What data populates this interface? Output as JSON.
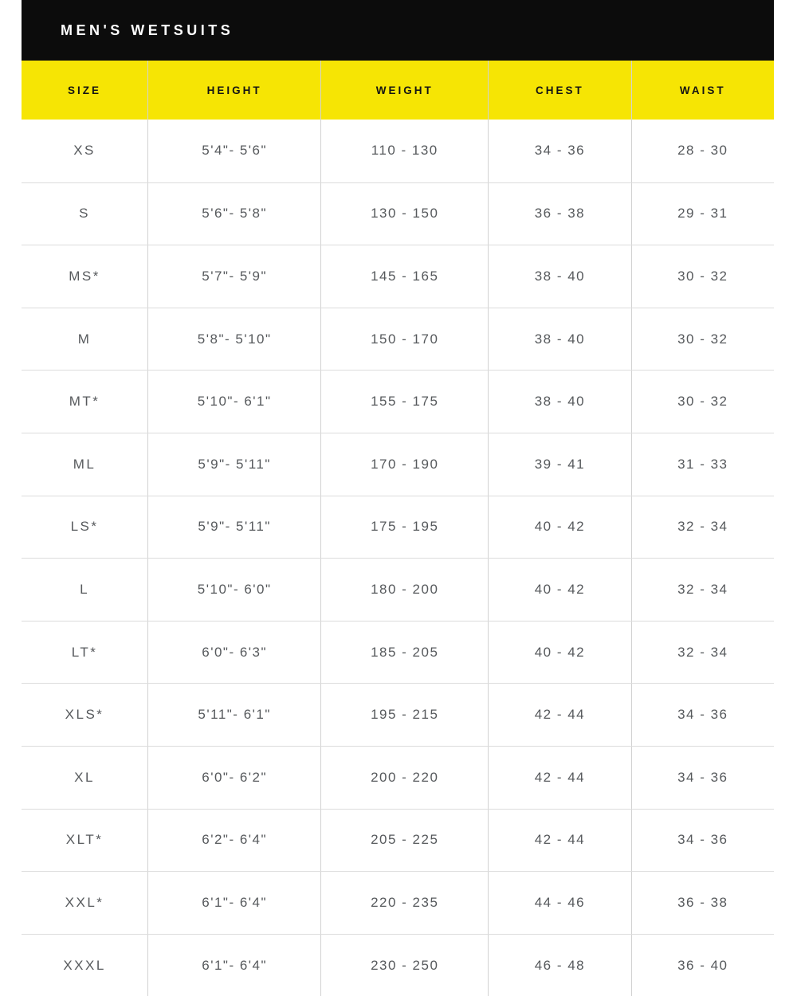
{
  "title": "MEN'S WETSUITS",
  "colors": {
    "title_bar_bg": "#0c0c0c",
    "title_text": "#ffffff",
    "header_bg": "#f6e504",
    "header_text": "#141414",
    "body_text": "#56595c",
    "grid_line": "#d2d2d2",
    "row_divider": "#dcdcdc",
    "page_bg": "#ffffff"
  },
  "chart_data": {
    "type": "table",
    "title": "MEN'S WETSUITS",
    "columns": [
      "SIZE",
      "HEIGHT",
      "WEIGHT",
      "CHEST",
      "WAIST"
    ],
    "rows": [
      [
        "XS",
        "5'4\"- 5'6\"",
        "110 - 130",
        "34 - 36",
        "28 - 30"
      ],
      [
        "S",
        "5'6\"- 5'8\"",
        "130 - 150",
        "36 - 38",
        "29 - 31"
      ],
      [
        "MS*",
        "5'7\"- 5'9\"",
        "145 - 165",
        "38 - 40",
        "30 - 32"
      ],
      [
        "M",
        "5'8\"- 5'10\"",
        "150 - 170",
        "38 - 40",
        "30 - 32"
      ],
      [
        "MT*",
        "5'10\"- 6'1\"",
        "155 - 175",
        "38 - 40",
        "30 - 32"
      ],
      [
        "ML",
        "5'9\"- 5'11\"",
        "170 - 190",
        "39 - 41",
        "31 - 33"
      ],
      [
        "LS*",
        "5'9\"- 5'11\"",
        "175 - 195",
        "40 - 42",
        "32 - 34"
      ],
      [
        "L",
        "5'10\"- 6'0\"",
        "180 - 200",
        "40 - 42",
        "32 - 34"
      ],
      [
        "LT*",
        "6'0\"- 6'3\"",
        "185 - 205",
        "40 - 42",
        "32 - 34"
      ],
      [
        "XLS*",
        "5'11\"- 6'1\"",
        "195 - 215",
        "42 - 44",
        "34 - 36"
      ],
      [
        "XL",
        "6'0\"- 6'2\"",
        "200 - 220",
        "42 - 44",
        "34 - 36"
      ],
      [
        "XLT*",
        "6'2\"- 6'4\"",
        "205 - 225",
        "42 - 44",
        "34 - 36"
      ],
      [
        "XXL*",
        "6'1\"- 6'4\"",
        "220 - 235",
        "44 - 46",
        "36 - 38"
      ],
      [
        "XXXL",
        "6'1\"- 6'4\"",
        "230 - 250",
        "46 - 48",
        "36 - 40"
      ]
    ]
  }
}
